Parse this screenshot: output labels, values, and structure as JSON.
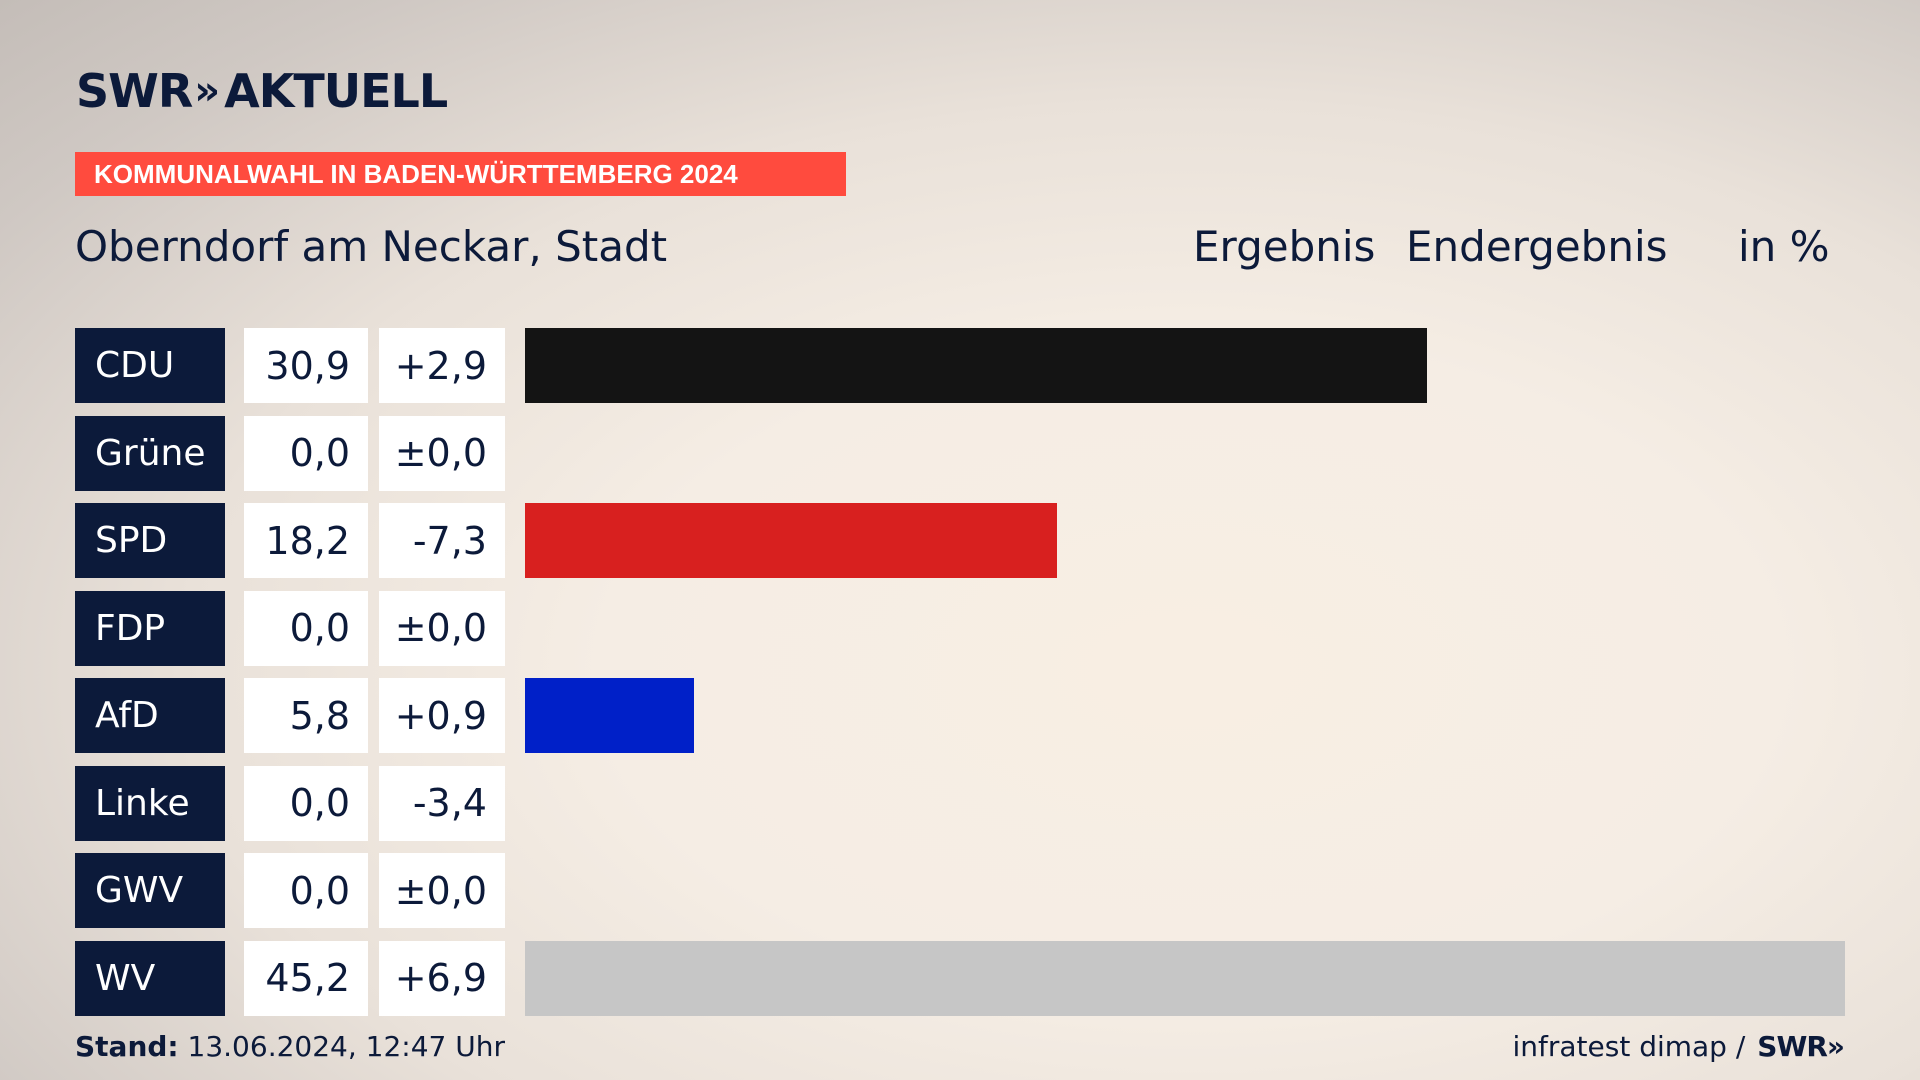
{
  "brand": {
    "logo_text": "SWR",
    "logo_chevrons": "»",
    "logo_suffix": "AKTUELL"
  },
  "banner": "KOMMUNALWAHL IN BADEN-WÜRTTEMBERG 2024",
  "place": "Oberndorf am Neckar, Stadt",
  "headers": {
    "result": "Ergebnis",
    "final": "Endergebnis",
    "unit": "in %"
  },
  "colors": {
    "navy": "#0c1a3a",
    "banner": "#ff4b3e"
  },
  "chart_data": {
    "type": "bar",
    "orientation": "horizontal",
    "title": "Kommunalwahl in Baden-Württemberg 2024 – Oberndorf am Neckar, Stadt",
    "unit": "%",
    "xlim": [
      0,
      45.2
    ],
    "categories": [
      "CDU",
      "Grüne",
      "SPD",
      "FDP",
      "AfD",
      "Linke",
      "GWV",
      "WV"
    ],
    "values": [
      30.9,
      0.0,
      18.2,
      0.0,
      5.8,
      0.0,
      0.0,
      45.2
    ],
    "value_labels": [
      "30,9",
      "0,0",
      "18,2",
      "0,0",
      "5,8",
      "0,0",
      "0,0",
      "45,2"
    ],
    "diff_labels": [
      "+2,9",
      "±0,0",
      "-7,3",
      "±0,0",
      "+0,9",
      "-3,4",
      "±0,0",
      "+6,9"
    ],
    "bar_colors": [
      "#141414",
      "#46962b",
      "#d8201f",
      "#f6e63a",
      "#0020c8",
      "#be3075",
      "#8a8a8a",
      "#c6c6c6"
    ]
  },
  "footer": {
    "stand_label": "Stand:",
    "stand_value": "13.06.2024, 12:47 Uhr",
    "source": "infratest dimap /",
    "source_brand": "SWR»"
  }
}
